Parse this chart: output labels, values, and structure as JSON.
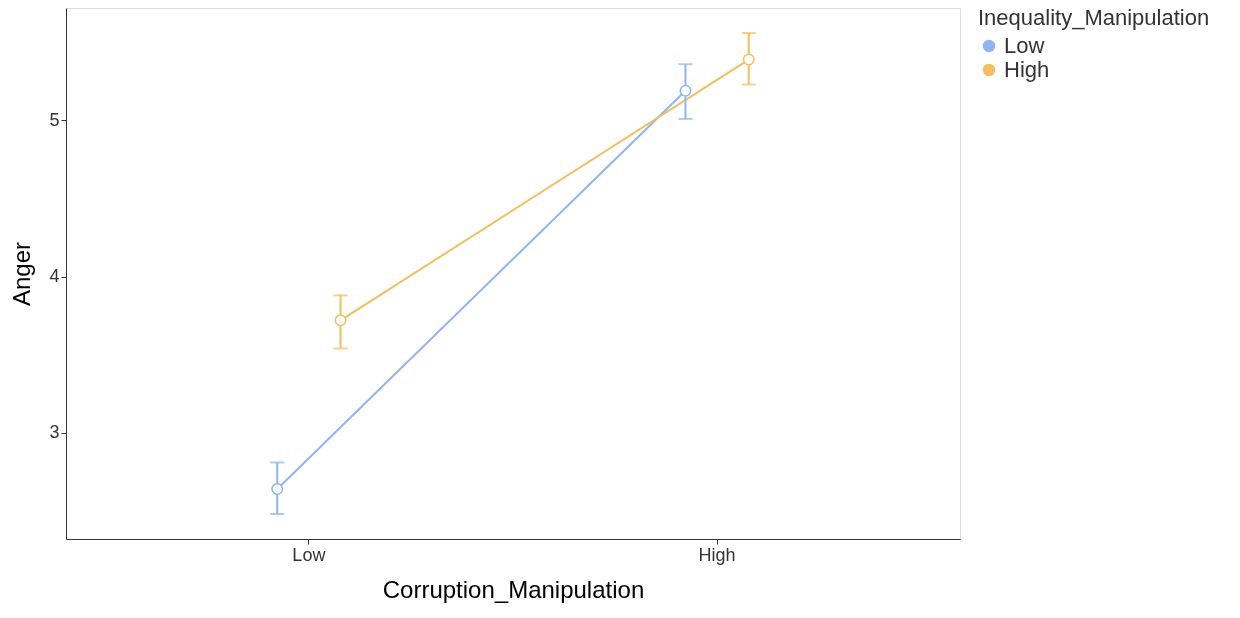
{
  "chart_data": {
    "type": "line",
    "xlabel": "Corruption_Manipulation",
    "ylabel": "Anger",
    "legend_title": "Inequality_Manipulation",
    "categories": [
      "Low",
      "High"
    ],
    "series": [
      {
        "name": "Low",
        "color": "#8fb4f0",
        "values": [
          2.64,
          5.19
        ],
        "errors": [
          [
            2.48,
            2.81
          ],
          [
            5.01,
            5.36
          ]
        ]
      },
      {
        "name": "High",
        "color": "#f2bf5e",
        "values": [
          3.72,
          5.39
        ],
        "errors": [
          [
            3.54,
            3.88
          ],
          [
            5.23,
            5.56
          ]
        ]
      }
    ],
    "ylim": [
      2.32,
      5.72
    ],
    "yticks": [
      3,
      4,
      5
    ],
    "grid": false,
    "legend": "right",
    "marker": "circle",
    "line_style": "solid"
  }
}
